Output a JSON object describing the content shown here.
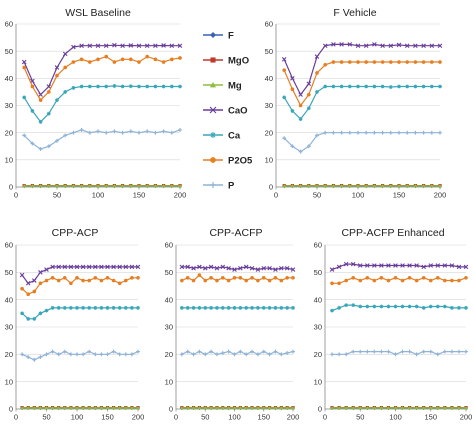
{
  "legend": {
    "items": [
      {
        "name": "F",
        "color": "#3a62b0",
        "marker": "diamond"
      },
      {
        "name": "MgO",
        "color": "#c0392b",
        "marker": "square"
      },
      {
        "name": "Mg",
        "color": "#8dbd3b",
        "marker": "triangle"
      },
      {
        "name": "CaO",
        "color": "#6a3d9a",
        "marker": "x"
      },
      {
        "name": "Ca",
        "color": "#3aa6b9",
        "marker": "star"
      },
      {
        "name": "P2O5",
        "color": "#e67e22",
        "marker": "circle"
      },
      {
        "name": "P",
        "color": "#8fb3d9",
        "marker": "plus"
      }
    ]
  },
  "chart_data": [
    {
      "type": "line",
      "title": "WSL Baseline",
      "xlim": [
        0,
        200
      ],
      "ylim": [
        0,
        60
      ],
      "xticks": [
        0,
        50,
        100,
        150,
        200
      ],
      "yticks": [
        0,
        10,
        20,
        30,
        40,
        50,
        60
      ],
      "x": [
        10,
        20,
        30,
        40,
        50,
        60,
        70,
        80,
        90,
        100,
        110,
        120,
        130,
        140,
        150,
        160,
        170,
        180,
        190,
        200
      ],
      "series": [
        {
          "name": "F",
          "values": [
            0.3,
            0.3,
            0.3,
            0.3,
            0.3,
            0.3,
            0.3,
            0.3,
            0.3,
            0.3,
            0.3,
            0.3,
            0.3,
            0.3,
            0.3,
            0.3,
            0.3,
            0.3,
            0.3,
            0.3
          ]
        },
        {
          "name": "MgO",
          "values": [
            0.5,
            0.5,
            0.5,
            0.5,
            0.5,
            0.5,
            0.5,
            0.5,
            0.5,
            0.5,
            0.5,
            0.5,
            0.5,
            0.5,
            0.5,
            0.5,
            0.5,
            0.5,
            0.5,
            0.5
          ]
        },
        {
          "name": "Mg",
          "values": [
            0.4,
            0.4,
            0.4,
            0.4,
            0.4,
            0.4,
            0.4,
            0.4,
            0.4,
            0.4,
            0.4,
            0.4,
            0.4,
            0.4,
            0.4,
            0.4,
            0.4,
            0.4,
            0.4,
            0.4
          ]
        },
        {
          "name": "CaO",
          "values": [
            46,
            39,
            34,
            37,
            44,
            49,
            51.5,
            52,
            52,
            52,
            52,
            52.2,
            52,
            52.1,
            52,
            52,
            52,
            52.1,
            52,
            52
          ]
        },
        {
          "name": "Ca",
          "values": [
            33,
            28,
            24,
            27,
            32,
            35,
            36.5,
            37,
            37,
            37,
            37,
            37.2,
            37,
            37.1,
            37,
            37,
            37,
            37,
            37,
            37
          ]
        },
        {
          "name": "P2O5",
          "values": [
            44,
            37,
            32,
            35,
            41,
            44,
            46,
            47,
            46,
            47,
            48,
            46,
            47,
            47,
            46,
            48,
            47,
            46,
            47,
            47.5
          ]
        },
        {
          "name": "P",
          "values": [
            19,
            16,
            14,
            15,
            17,
            19,
            20,
            21,
            20,
            20.5,
            20,
            20.5,
            20,
            20.5,
            20,
            20.5,
            20,
            20.5,
            20,
            21
          ]
        }
      ]
    },
    {
      "type": "line",
      "title": "F Vehicle",
      "xlim": [
        0,
        200
      ],
      "ylim": [
        0,
        60
      ],
      "xticks": [
        0,
        50,
        100,
        150,
        200
      ],
      "yticks": [
        0,
        10,
        20,
        30,
        40,
        50,
        60
      ],
      "x": [
        10,
        20,
        30,
        40,
        50,
        60,
        70,
        80,
        90,
        100,
        110,
        120,
        130,
        140,
        150,
        160,
        170,
        180,
        190,
        200
      ],
      "series": [
        {
          "name": "F",
          "values": [
            0.3,
            0.3,
            0.3,
            0.3,
            0.3,
            0.3,
            0.3,
            0.3,
            0.3,
            0.3,
            0.3,
            0.3,
            0.3,
            0.3,
            0.3,
            0.3,
            0.3,
            0.3,
            0.3,
            0.3
          ]
        },
        {
          "name": "MgO",
          "values": [
            0.5,
            0.5,
            0.5,
            0.5,
            0.5,
            0.5,
            0.5,
            0.5,
            0.5,
            0.5,
            0.5,
            0.5,
            0.5,
            0.5,
            0.5,
            0.5,
            0.5,
            0.5,
            0.5,
            0.5
          ]
        },
        {
          "name": "Mg",
          "values": [
            0.4,
            0.4,
            0.4,
            0.4,
            0.4,
            0.4,
            0.4,
            0.4,
            0.4,
            0.4,
            0.4,
            0.4,
            0.4,
            0.4,
            0.4,
            0.4,
            0.4,
            0.4,
            0.4,
            0.4
          ]
        },
        {
          "name": "CaO",
          "values": [
            47,
            40,
            34,
            38,
            48,
            52,
            52.5,
            52.5,
            52.5,
            52,
            52,
            52.5,
            52,
            52,
            52.3,
            52,
            52,
            52,
            52,
            52
          ]
        },
        {
          "name": "Ca",
          "values": [
            33,
            28,
            25,
            29,
            35,
            37,
            37,
            37,
            37,
            37,
            37,
            37,
            37,
            36.8,
            37,
            37,
            37,
            37,
            37,
            37
          ]
        },
        {
          "name": "P2O5",
          "values": [
            43,
            36,
            30,
            34,
            42,
            45,
            46,
            46,
            46,
            46,
            46,
            46,
            46,
            46,
            46,
            46,
            46,
            46,
            46,
            46
          ]
        },
        {
          "name": "P",
          "values": [
            18,
            15,
            13,
            15,
            19,
            20,
            20,
            20,
            20,
            20,
            20,
            20,
            20,
            20,
            20,
            20,
            20,
            20,
            20,
            20
          ]
        }
      ]
    },
    {
      "type": "line",
      "title": "CPP-ACP",
      "xlim": [
        0,
        200
      ],
      "ylim": [
        0,
        60
      ],
      "xticks": [
        0,
        50,
        100,
        150,
        200
      ],
      "yticks": [
        0,
        10,
        20,
        30,
        40,
        50,
        60
      ],
      "x": [
        10,
        20,
        30,
        40,
        50,
        60,
        70,
        80,
        90,
        100,
        110,
        120,
        130,
        140,
        150,
        160,
        170,
        180,
        190,
        200
      ],
      "series": [
        {
          "name": "F",
          "values": [
            0.3,
            0.3,
            0.3,
            0.3,
            0.3,
            0.3,
            0.3,
            0.3,
            0.3,
            0.3,
            0.3,
            0.3,
            0.3,
            0.3,
            0.3,
            0.3,
            0.3,
            0.3,
            0.3,
            0.3
          ]
        },
        {
          "name": "MgO",
          "values": [
            0.5,
            0.5,
            0.5,
            0.5,
            0.5,
            0.5,
            0.5,
            0.5,
            0.5,
            0.5,
            0.5,
            0.5,
            0.5,
            0.5,
            0.5,
            0.5,
            0.5,
            0.5,
            0.5,
            0.5
          ]
        },
        {
          "name": "Mg",
          "values": [
            0.4,
            0.4,
            0.4,
            0.4,
            0.4,
            0.4,
            0.4,
            0.4,
            0.4,
            0.4,
            0.4,
            0.4,
            0.4,
            0.4,
            0.4,
            0.4,
            0.4,
            0.4,
            0.4,
            0.4
          ]
        },
        {
          "name": "CaO",
          "values": [
            49,
            46,
            47,
            50,
            51,
            52,
            52,
            52,
            52,
            52,
            52,
            52,
            52,
            52,
            52,
            52,
            52,
            52,
            52,
            52
          ]
        },
        {
          "name": "Ca",
          "values": [
            35,
            33,
            33,
            35,
            36,
            37,
            37,
            37,
            37,
            37,
            37,
            37,
            37,
            37,
            37,
            37,
            37,
            37,
            37,
            37
          ]
        },
        {
          "name": "P2O5",
          "values": [
            44,
            42,
            43,
            46,
            47,
            48,
            47,
            48,
            46,
            48,
            47,
            47,
            48,
            47,
            48,
            47,
            46,
            47,
            48,
            48
          ]
        },
        {
          "name": "P",
          "values": [
            20,
            19,
            18,
            19,
            20,
            21,
            20,
            21,
            20,
            20,
            20,
            21,
            20,
            20,
            20,
            21,
            20,
            20,
            20,
            21
          ]
        }
      ]
    },
    {
      "type": "line",
      "title": "CPP-ACFP",
      "xlim": [
        0,
        200
      ],
      "ylim": [
        0,
        60
      ],
      "xticks": [
        0,
        50,
        100,
        150,
        200
      ],
      "yticks": [
        0,
        10,
        20,
        30,
        40,
        50,
        60
      ],
      "x": [
        10,
        20,
        30,
        40,
        50,
        60,
        70,
        80,
        90,
        100,
        110,
        120,
        130,
        140,
        150,
        160,
        170,
        180,
        190,
        200
      ],
      "series": [
        {
          "name": "F",
          "values": [
            0.3,
            0.3,
            0.3,
            0.3,
            0.3,
            0.3,
            0.3,
            0.3,
            0.3,
            0.3,
            0.3,
            0.3,
            0.3,
            0.3,
            0.3,
            0.3,
            0.3,
            0.3,
            0.3,
            0.3
          ]
        },
        {
          "name": "MgO",
          "values": [
            0.5,
            0.5,
            0.5,
            0.5,
            0.5,
            0.5,
            0.5,
            0.5,
            0.5,
            0.5,
            0.5,
            0.5,
            0.5,
            0.5,
            0.5,
            0.5,
            0.5,
            0.5,
            0.5,
            0.5
          ]
        },
        {
          "name": "Mg",
          "values": [
            0.4,
            0.4,
            0.4,
            0.4,
            0.4,
            0.4,
            0.4,
            0.4,
            0.4,
            0.4,
            0.4,
            0.4,
            0.4,
            0.4,
            0.4,
            0.4,
            0.4,
            0.4,
            0.4,
            0.4
          ]
        },
        {
          "name": "CaO",
          "values": [
            52,
            52,
            51.5,
            52,
            51.5,
            52,
            51.5,
            52,
            51.5,
            51,
            51.5,
            52,
            51.5,
            51,
            51.5,
            51.5,
            51,
            51.5,
            51.5,
            51
          ]
        },
        {
          "name": "Ca",
          "values": [
            37,
            37,
            37,
            37,
            37,
            37,
            37,
            37,
            37,
            37,
            37,
            37,
            37,
            37,
            37,
            37,
            37,
            37,
            37,
            37
          ]
        },
        {
          "name": "P2O5",
          "values": [
            47,
            48,
            47,
            49,
            47,
            48,
            47,
            48,
            47,
            48,
            48,
            47,
            48,
            47,
            48,
            47,
            48,
            47,
            48,
            48
          ]
        },
        {
          "name": "P",
          "values": [
            20,
            21,
            20,
            21,
            20,
            21,
            20,
            20.5,
            21,
            20,
            21,
            20,
            21,
            20,
            21,
            20,
            21,
            20,
            20.5,
            21
          ]
        }
      ]
    },
    {
      "type": "line",
      "title": "CPP-ACFP Enhanced",
      "xlim": [
        0,
        200
      ],
      "ylim": [
        0,
        60
      ],
      "xticks": [
        0,
        50,
        100,
        150,
        200
      ],
      "yticks": [
        0,
        10,
        20,
        30,
        40,
        50,
        60
      ],
      "x": [
        10,
        20,
        30,
        40,
        50,
        60,
        70,
        80,
        90,
        100,
        110,
        120,
        130,
        140,
        150,
        160,
        170,
        180,
        190,
        200
      ],
      "series": [
        {
          "name": "F",
          "values": [
            0.3,
            0.3,
            0.3,
            0.3,
            0.3,
            0.3,
            0.3,
            0.3,
            0.3,
            0.3,
            0.3,
            0.3,
            0.3,
            0.3,
            0.3,
            0.3,
            0.3,
            0.3,
            0.3,
            0.3
          ]
        },
        {
          "name": "MgO",
          "values": [
            0.5,
            0.5,
            0.5,
            0.5,
            0.5,
            0.5,
            0.5,
            0.5,
            0.5,
            0.5,
            0.5,
            0.5,
            0.5,
            0.5,
            0.5,
            0.5,
            0.5,
            0.5,
            0.5,
            0.5
          ]
        },
        {
          "name": "Mg",
          "values": [
            0.4,
            0.4,
            0.4,
            0.4,
            0.4,
            0.4,
            0.4,
            0.4,
            0.4,
            0.4,
            0.4,
            0.4,
            0.4,
            0.4,
            0.4,
            0.4,
            0.4,
            0.4,
            0.4,
            0.4
          ]
        },
        {
          "name": "CaO",
          "values": [
            51,
            52,
            53,
            53,
            52.5,
            52.5,
            52.5,
            52.5,
            52.5,
            52.5,
            52.5,
            52.5,
            52.5,
            52,
            52.5,
            52.5,
            52.5,
            52.5,
            52,
            52
          ]
        },
        {
          "name": "Ca",
          "values": [
            36,
            37,
            38,
            38,
            37.5,
            37.5,
            37.5,
            37.5,
            37.5,
            37.5,
            37.5,
            37.5,
            37.5,
            37,
            37.5,
            37.5,
            37.5,
            37,
            37,
            37
          ]
        },
        {
          "name": "P2O5",
          "values": [
            46,
            46,
            47,
            48,
            47,
            48,
            47,
            48,
            47,
            48,
            47,
            48,
            47,
            48,
            47,
            48,
            47,
            47,
            47,
            48
          ]
        },
        {
          "name": "P",
          "values": [
            20,
            20,
            20,
            21,
            21,
            21,
            21,
            21,
            21,
            20,
            21,
            21,
            20,
            21,
            21,
            20,
            21,
            21,
            21,
            21
          ]
        }
      ]
    }
  ]
}
